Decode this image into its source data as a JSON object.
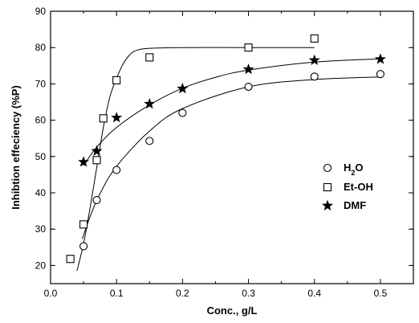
{
  "chart_data": {
    "type": "scatter",
    "xlabel": "Conc., g/L",
    "ylabel": "Inhibtion effeciency (%P)",
    "xlim": [
      0.0,
      0.55
    ],
    "ylim": [
      15,
      90
    ],
    "x_ticks": [
      0.0,
      0.1,
      0.2,
      0.3,
      0.4,
      0.5
    ],
    "x_tick_labels": [
      "0.0",
      "0.1",
      "0.2",
      "0.3",
      "0.4",
      "0.5"
    ],
    "y_ticks": [
      20,
      30,
      40,
      50,
      60,
      70,
      80,
      90
    ],
    "y_tick_labels": [
      "20",
      "30",
      "40",
      "50",
      "60",
      "70",
      "80",
      "90"
    ],
    "grid": false,
    "legend_position": "right",
    "series": [
      {
        "name": "H2O",
        "name_parts": [
          "H",
          "2",
          "O"
        ],
        "marker": "circle",
        "x": [
          0.05,
          0.07,
          0.1,
          0.15,
          0.2,
          0.3,
          0.4,
          0.5
        ],
        "y": [
          25.3,
          38.0,
          46.3,
          54.3,
          62.0,
          69.2,
          72.0,
          72.7
        ],
        "fit": {
          "x": [
            0.048,
            0.06,
            0.075,
            0.1,
            0.15,
            0.2,
            0.3,
            0.4,
            0.5
          ],
          "y": [
            27.3,
            33.5,
            39.8,
            47.3,
            57.0,
            63.2,
            69.2,
            71.2,
            71.9
          ]
        }
      },
      {
        "name": "Et-OH",
        "marker": "square",
        "x": [
          0.03,
          0.05,
          0.07,
          0.08,
          0.1,
          0.15,
          0.3,
          0.4
        ],
        "y": [
          21.8,
          31.3,
          49.0,
          60.5,
          71.0,
          77.3,
          80.0,
          82.5
        ],
        "fit": {
          "x": [
            0.04,
            0.05,
            0.06,
            0.07,
            0.08,
            0.09,
            0.1,
            0.11,
            0.12,
            0.13,
            0.15,
            0.2,
            0.3,
            0.4
          ],
          "y": [
            18.5,
            26.0,
            36.0,
            47.0,
            58.0,
            66.5,
            71.5,
            75.5,
            78.0,
            79.2,
            79.8,
            80.0,
            80.0,
            80.0
          ]
        }
      },
      {
        "name": "DMF",
        "marker": "star",
        "x": [
          0.05,
          0.07,
          0.1,
          0.15,
          0.2,
          0.3,
          0.4,
          0.5
        ],
        "y": [
          48.5,
          51.5,
          60.7,
          64.5,
          68.7,
          74.0,
          76.5,
          76.8
        ],
        "fit": {
          "x": [
            0.05,
            0.07,
            0.1,
            0.15,
            0.2,
            0.25,
            0.3,
            0.4,
            0.5
          ],
          "y": [
            47.5,
            52.6,
            58.0,
            64.2,
            68.8,
            71.8,
            73.8,
            76.0,
            76.9
          ]
        }
      }
    ]
  }
}
